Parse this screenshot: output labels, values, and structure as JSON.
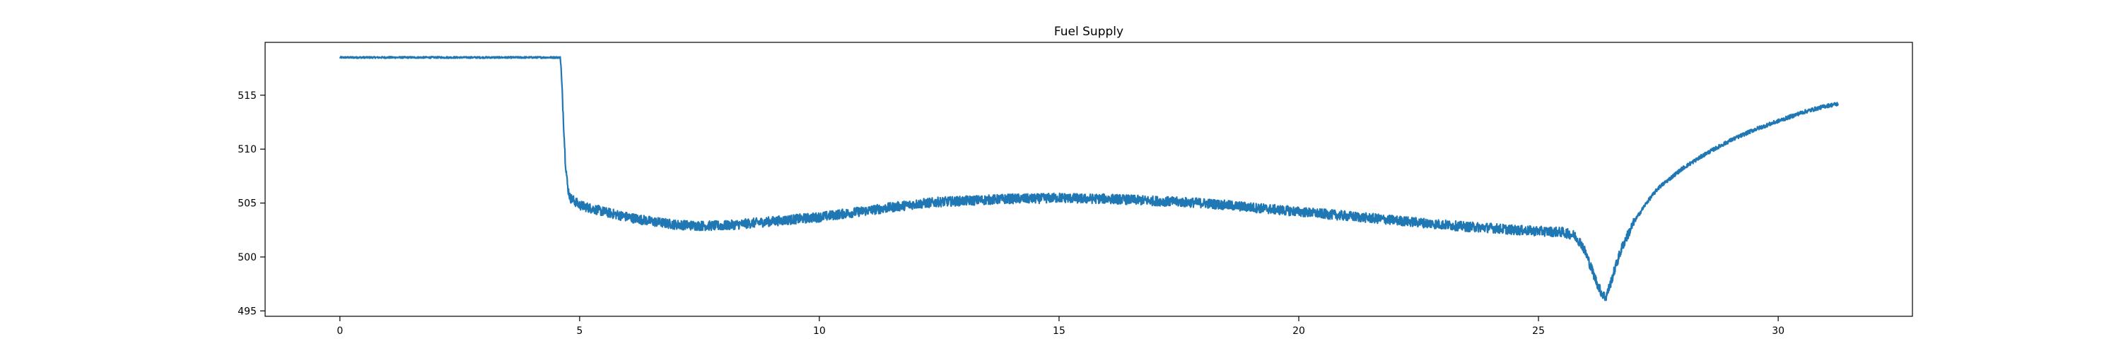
{
  "chart_data": {
    "type": "line",
    "title": "Fuel Supply",
    "xlabel": "",
    "ylabel": "",
    "xlim": [
      -1.56,
      32.8
    ],
    "ylim": [
      494.5,
      519.9
    ],
    "xticks": [
      0,
      5,
      10,
      15,
      20,
      25,
      30
    ],
    "yticks": [
      495,
      500,
      505,
      510,
      515
    ],
    "grid": false,
    "series": [
      {
        "color": "#1f77b4",
        "noise": 0.45,
        "points": [
          [
            0.0,
            518.5
          ],
          [
            2.0,
            518.5
          ],
          [
            4.0,
            518.5
          ],
          [
            4.6,
            518.5
          ],
          [
            4.65,
            514.0
          ],
          [
            4.7,
            509.0
          ],
          [
            4.75,
            506.5
          ],
          [
            4.8,
            505.5
          ],
          [
            5.0,
            504.8
          ],
          [
            5.5,
            504.2
          ],
          [
            6.0,
            503.7
          ],
          [
            6.5,
            503.3
          ],
          [
            7.0,
            503.0
          ],
          [
            7.5,
            502.9
          ],
          [
            8.0,
            502.9
          ],
          [
            8.5,
            503.1
          ],
          [
            9.0,
            503.3
          ],
          [
            9.5,
            503.5
          ],
          [
            10.0,
            503.7
          ],
          [
            10.5,
            504.0
          ],
          [
            11.0,
            504.3
          ],
          [
            11.5,
            504.6
          ],
          [
            12.0,
            504.9
          ],
          [
            12.5,
            505.1
          ],
          [
            13.0,
            505.2
          ],
          [
            13.5,
            505.3
          ],
          [
            14.0,
            505.4
          ],
          [
            14.5,
            505.4
          ],
          [
            15.0,
            505.5
          ],
          [
            15.5,
            505.4
          ],
          [
            16.0,
            505.4
          ],
          [
            16.5,
            505.3
          ],
          [
            17.0,
            505.2
          ],
          [
            17.5,
            505.1
          ],
          [
            18.0,
            505.0
          ],
          [
            18.5,
            504.8
          ],
          [
            19.0,
            504.6
          ],
          [
            19.5,
            504.4
          ],
          [
            20.0,
            504.2
          ],
          [
            20.5,
            504.0
          ],
          [
            21.0,
            503.8
          ],
          [
            21.5,
            503.6
          ],
          [
            22.0,
            503.4
          ],
          [
            22.5,
            503.2
          ],
          [
            23.0,
            503.0
          ],
          [
            23.5,
            502.8
          ],
          [
            24.0,
            502.7
          ],
          [
            24.5,
            502.5
          ],
          [
            25.0,
            502.4
          ],
          [
            25.5,
            502.3
          ],
          [
            25.75,
            502.0
          ],
          [
            25.9,
            501.2
          ],
          [
            26.0,
            500.2
          ],
          [
            26.1,
            499.0
          ],
          [
            26.2,
            497.8
          ],
          [
            26.3,
            496.8
          ],
          [
            26.4,
            496.2
          ],
          [
            26.5,
            497.5
          ],
          [
            26.6,
            499.0
          ],
          [
            26.75,
            501.0
          ],
          [
            27.0,
            503.3
          ],
          [
            27.25,
            505.0
          ],
          [
            27.5,
            506.4
          ],
          [
            28.0,
            508.2
          ],
          [
            28.5,
            509.6
          ],
          [
            29.0,
            510.8
          ],
          [
            29.5,
            511.8
          ],
          [
            30.0,
            512.6
          ],
          [
            30.5,
            513.4
          ],
          [
            31.0,
            514.0
          ],
          [
            31.25,
            514.2
          ]
        ]
      }
    ]
  }
}
